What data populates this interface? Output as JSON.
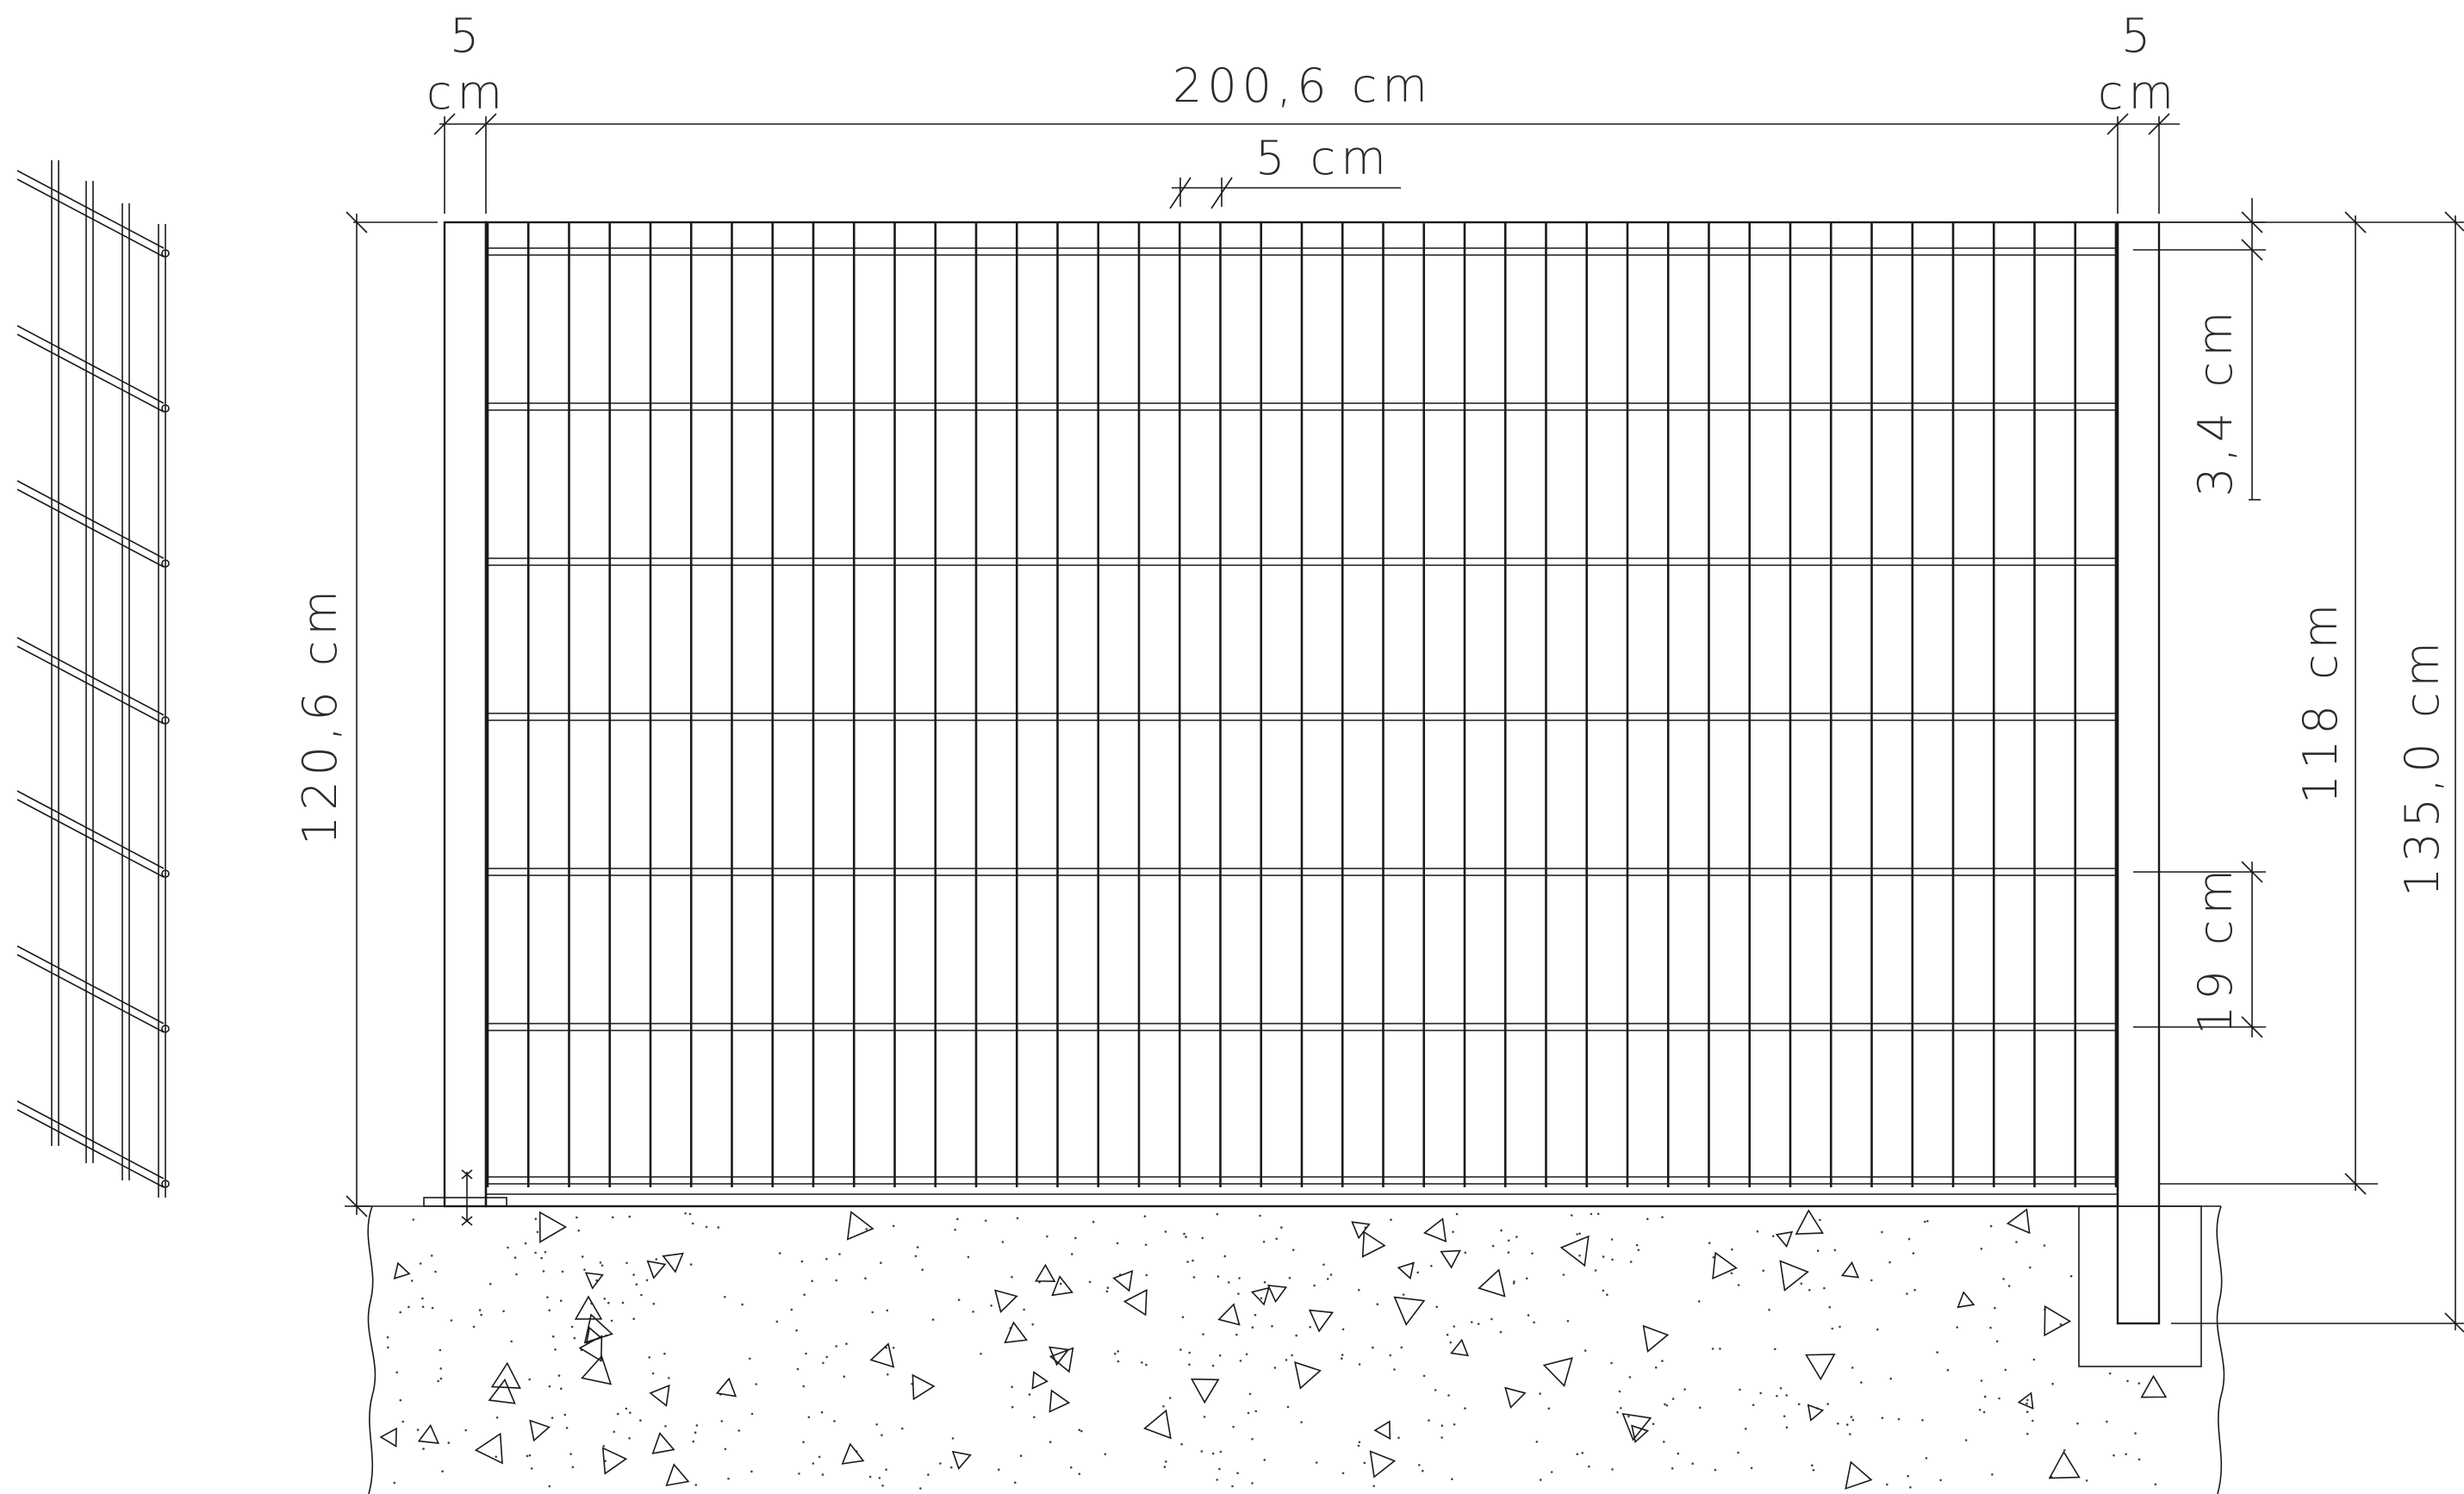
{
  "dimensions": {
    "left_post_width": {
      "number": "5",
      "unit": "cm"
    },
    "right_post_width": {
      "number": "5",
      "unit": "cm"
    },
    "panel_width": "200,6 cm",
    "wire_spacing": "5 cm",
    "panel_height": "120,6 cm",
    "top_gap": "3,4 cm",
    "mesh_height": "118 cm",
    "post_height": "135,0 cm",
    "row_spacing": "19 cm"
  },
  "colors": {
    "line": "#1a1a1a",
    "text": "#2b2b2b",
    "background": "#ffffff"
  }
}
